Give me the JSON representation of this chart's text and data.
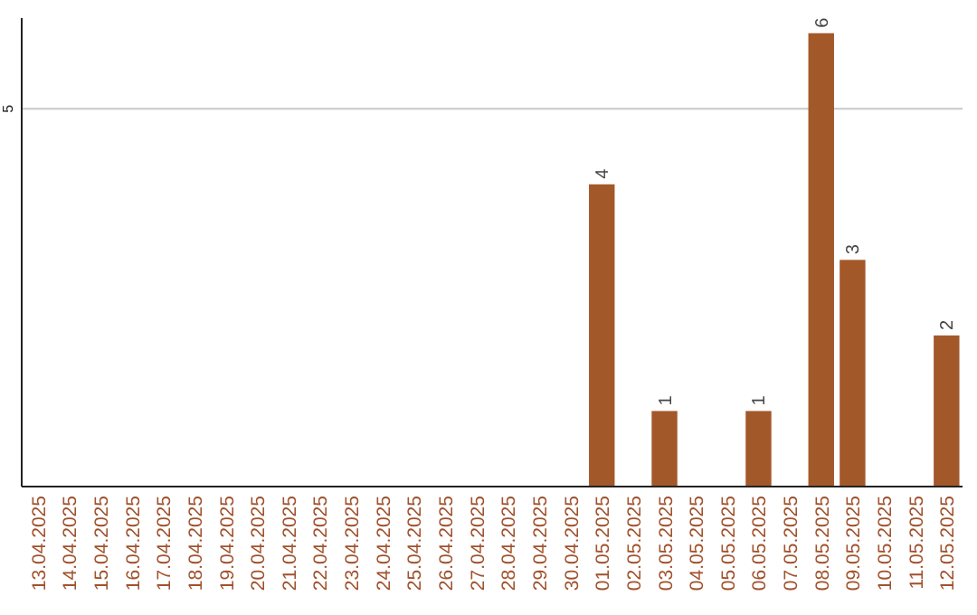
{
  "chart_data": {
    "type": "bar",
    "categories": [
      "13.04.2025",
      "14.04.2025",
      "15.04.2025",
      "16.04.2025",
      "17.04.2025",
      "18.04.2025",
      "19.04.2025",
      "20.04.2025",
      "21.04.2025",
      "22.04.2025",
      "23.04.2025",
      "24.04.2025",
      "25.04.2025",
      "26.04.2025",
      "27.04.2025",
      "28.04.2025",
      "29.04.2025",
      "30.04.2025",
      "01.05.2025",
      "02.05.2025",
      "03.05.2025",
      "04.05.2025",
      "05.05.2025",
      "06.05.2025",
      "07.05.2025",
      "08.05.2025",
      "09.05.2025",
      "10.05.2025",
      "11.05.2025",
      "12.05.2025"
    ],
    "values": [
      null,
      null,
      null,
      null,
      null,
      null,
      null,
      null,
      null,
      null,
      null,
      null,
      null,
      null,
      null,
      null,
      null,
      null,
      4,
      null,
      1,
      null,
      null,
      1,
      null,
      6,
      3,
      null,
      null,
      2
    ],
    "data_labels": true,
    "color": "#a3582a",
    "ylim": [
      0,
      6.2
    ],
    "yticks": [
      5
    ],
    "grid": "y"
  }
}
